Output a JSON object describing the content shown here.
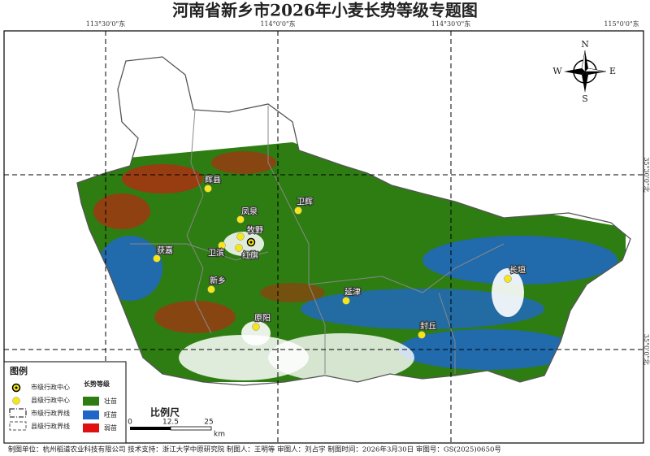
{
  "title": "河南省新乡市2026年小麦长势等级专题图",
  "grid_labels": {
    "top": [
      "113°30'0\"东",
      "114°0'0\"东",
      "114°30'0\"东",
      "115°0'0\"东"
    ],
    "right": [
      "35°30'0\"北",
      "35°0'0\"北"
    ]
  },
  "compass": {
    "n": "N",
    "e": "E",
    "s": "S",
    "w": "W"
  },
  "places": [
    "辉县",
    "卫辉",
    "凤泉",
    "牧野",
    "红旗",
    "卫滨",
    "获嘉",
    "新乡",
    "原阳",
    "延津",
    "封丘",
    "长垣"
  ],
  "legend": {
    "title": "图例",
    "symbols": [
      "市级行政中心",
      "县级行政中心",
      "市级行政界线",
      "县级行政界线"
    ],
    "growth_title": "长势等级",
    "classes": [
      "壮苗",
      "旺苗",
      "弱苗"
    ]
  },
  "scale": {
    "title": "比例尺",
    "labels": [
      "0",
      "12.5",
      "25"
    ],
    "unit": "km"
  },
  "footer": "制图单位：杭州稻道农业科技有限公司 技术支持：浙江大学中原研究院 制图人：王明等 审图人：刘占宇 制图时间：2026年3月30日 审图号：GS(2025)0650号"
}
